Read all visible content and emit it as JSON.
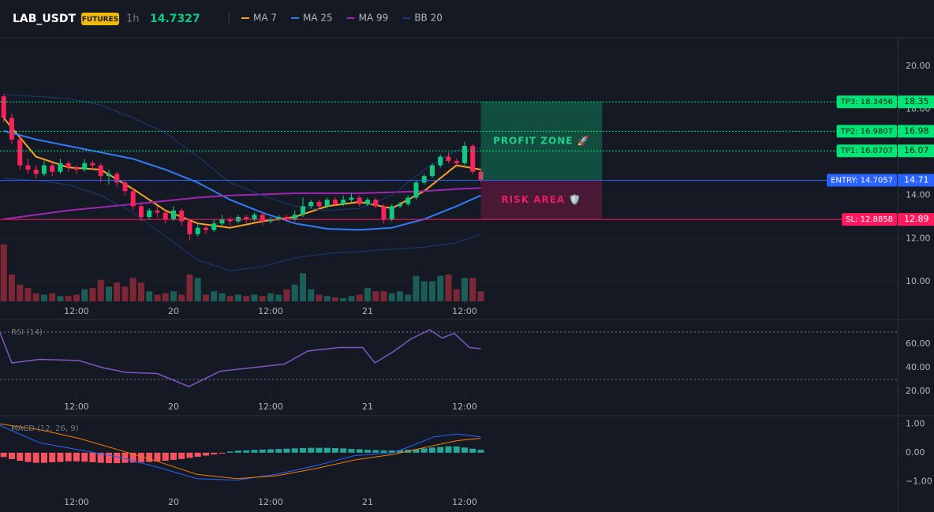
{
  "header": {
    "symbol": "LAB_USDT",
    "badge": "FUTURES",
    "interval": "1h",
    "price": "14.7327"
  },
  "chart_data": [
    {
      "type": "candlestick",
      "xlim": [
        2.54,
        113.56
      ],
      "xticks": [
        {
          "value": 12,
          "label": "12:00"
        },
        {
          "value": 24,
          "label": "20"
        },
        {
          "value": 36,
          "label": "12:00"
        },
        {
          "value": 48,
          "label": "21"
        },
        {
          "value": 60,
          "label": "12:00"
        }
      ],
      "ylim": [
        9.08,
        21.32
      ],
      "yticks": [
        {
          "value": 20,
          "label": "20.00"
        },
        {
          "value": 18,
          "label": "18.00"
        },
        {
          "value": 16,
          "label": "16.00"
        },
        {
          "value": 14,
          "label": "14.00"
        },
        {
          "value": 12,
          "label": "12.00"
        },
        {
          "value": 10,
          "label": "10.00"
        }
      ],
      "grid": true,
      "up_color": "#0ecb81",
      "down_color": "#f6245a",
      "volume_up_color": "#1b5e57",
      "volume_down_color": "#7c2736",
      "volume_ylim": [
        0,
        100
      ],
      "x": [
        3,
        4,
        5,
        6,
        7,
        8,
        9,
        10,
        11,
        12,
        13,
        14,
        15,
        16,
        17,
        18,
        19,
        20,
        21,
        22,
        23,
        24,
        25,
        26,
        27,
        28,
        29,
        30,
        31,
        32,
        33,
        34,
        35,
        36,
        37,
        38,
        39,
        40,
        41,
        42,
        43,
        44,
        45,
        46,
        47,
        48,
        49,
        50,
        51,
        52,
        53,
        54,
        55,
        56,
        57,
        58,
        59,
        60,
        61,
        62
      ],
      "candles": [
        [
          18.6,
          18.7,
          17.4,
          17.6
        ],
        [
          17.6,
          17.8,
          16.4,
          16.6
        ],
        [
          16.6,
          16.8,
          15.2,
          15.4
        ],
        [
          15.4,
          15.7,
          15.0,
          15.2
        ],
        [
          15.2,
          15.4,
          14.8,
          15.0
        ],
        [
          15.0,
          15.6,
          14.9,
          15.4
        ],
        [
          15.4,
          15.5,
          14.9,
          15.1
        ],
        [
          15.1,
          15.7,
          15.0,
          15.5
        ],
        [
          15.5,
          15.6,
          15.1,
          15.3
        ],
        [
          15.3,
          15.4,
          15.0,
          15.2
        ],
        [
          15.2,
          15.7,
          15.1,
          15.5
        ],
        [
          15.5,
          15.6,
          15.2,
          15.4
        ],
        [
          15.4,
          15.5,
          14.6,
          14.9
        ],
        [
          14.9,
          15.2,
          14.5,
          15.0
        ],
        [
          15.0,
          15.1,
          14.4,
          14.6
        ],
        [
          14.6,
          14.7,
          14.0,
          14.2
        ],
        [
          14.2,
          14.3,
          13.3,
          13.5
        ],
        [
          13.5,
          13.6,
          12.8,
          13.0
        ],
        [
          13.0,
          13.4,
          12.9,
          13.3
        ],
        [
          13.3,
          13.5,
          13.0,
          13.2
        ],
        [
          13.2,
          13.3,
          12.7,
          12.9
        ],
        [
          12.9,
          13.5,
          12.8,
          13.3
        ],
        [
          13.3,
          13.4,
          12.6,
          12.8
        ],
        [
          12.8,
          12.9,
          11.9,
          12.2
        ],
        [
          12.2,
          12.7,
          12.1,
          12.5
        ],
        [
          12.5,
          12.6,
          12.2,
          12.4
        ],
        [
          12.4,
          12.9,
          12.3,
          12.7
        ],
        [
          12.7,
          13.1,
          12.6,
          12.9
        ],
        [
          12.9,
          13.0,
          12.6,
          12.8
        ],
        [
          12.8,
          13.1,
          12.7,
          13.0
        ],
        [
          13.0,
          13.1,
          12.7,
          12.9
        ],
        [
          12.9,
          13.2,
          12.8,
          13.1
        ],
        [
          13.1,
          13.2,
          12.6,
          12.8
        ],
        [
          12.8,
          13.0,
          12.7,
          12.9
        ],
        [
          12.9,
          13.1,
          12.8,
          13.0
        ],
        [
          13.0,
          13.1,
          12.8,
          12.9
        ],
        [
          12.9,
          13.3,
          12.8,
          13.1
        ],
        [
          13.1,
          13.9,
          13.0,
          13.5
        ],
        [
          13.5,
          13.8,
          13.4,
          13.7
        ],
        [
          13.7,
          13.8,
          13.4,
          13.5
        ],
        [
          13.5,
          13.9,
          13.4,
          13.8
        ],
        [
          13.8,
          13.9,
          13.5,
          13.6
        ],
        [
          13.6,
          14.0,
          13.5,
          13.8
        ],
        [
          13.8,
          14.1,
          13.7,
          13.9
        ],
        [
          13.9,
          14.0,
          13.5,
          13.6
        ],
        [
          13.6,
          13.9,
          13.5,
          13.8
        ],
        [
          13.8,
          13.9,
          13.4,
          13.5
        ],
        [
          13.5,
          13.6,
          12.7,
          12.9
        ],
        [
          12.9,
          13.6,
          12.8,
          13.5
        ],
        [
          13.5,
          13.7,
          13.4,
          13.6
        ],
        [
          13.6,
          14.0,
          13.5,
          13.9
        ],
        [
          13.9,
          14.7,
          13.8,
          14.6
        ],
        [
          14.6,
          15.0,
          14.5,
          14.9
        ],
        [
          14.9,
          15.5,
          14.8,
          15.4
        ],
        [
          15.4,
          15.9,
          15.3,
          15.8
        ],
        [
          15.8,
          16.0,
          15.5,
          15.6
        ],
        [
          15.6,
          15.7,
          15.3,
          15.5
        ],
        [
          15.5,
          16.5,
          15.4,
          16.3
        ],
        [
          16.3,
          16.4,
          15.0,
          15.1
        ],
        [
          15.1,
          15.2,
          14.6,
          14.73
        ]
      ],
      "volume": [
        85,
        40,
        25,
        20,
        12,
        10,
        12,
        8,
        8,
        10,
        18,
        20,
        32,
        22,
        28,
        22,
        35,
        28,
        15,
        10,
        12,
        15,
        10,
        40,
        35,
        10,
        15,
        12,
        8,
        10,
        8,
        10,
        8,
        12,
        10,
        18,
        25,
        42,
        18,
        10,
        8,
        6,
        5,
        8,
        10,
        20,
        15,
        15,
        12,
        15,
        10,
        38,
        30,
        30,
        38,
        40,
        18,
        35,
        35,
        15
      ],
      "series": [
        {
          "name": "MA 7",
          "color": "#f7a325",
          "x": [
            3,
            7,
            11,
            15,
            19,
            23,
            27,
            31,
            35,
            39,
            43,
            47,
            51,
            55,
            59,
            62
          ],
          "values": [
            17.6,
            15.8,
            15.3,
            15.2,
            14.3,
            13.3,
            12.7,
            12.5,
            12.8,
            13.0,
            13.5,
            13.7,
            13.4,
            14.2,
            15.4,
            15.2
          ]
        },
        {
          "name": "MA 25",
          "color": "#2f7cf6",
          "x": [
            3,
            7,
            11,
            15,
            19,
            23,
            27,
            31,
            35,
            39,
            43,
            47,
            51,
            55,
            59,
            62
          ],
          "values": [
            17.0,
            16.6,
            16.3,
            16.0,
            15.7,
            15.2,
            14.6,
            13.8,
            13.2,
            12.7,
            12.45,
            12.4,
            12.5,
            12.9,
            13.5,
            14.0
          ]
        },
        {
          "name": "MA 99",
          "color": "#9c27b0",
          "x": [
            3,
            7,
            11,
            15,
            19,
            23,
            27,
            31,
            35,
            39,
            43,
            47,
            51,
            55,
            59,
            62
          ],
          "values": [
            12.9,
            13.1,
            13.3,
            13.45,
            13.6,
            13.75,
            13.9,
            14.0,
            14.05,
            14.1,
            14.1,
            14.1,
            14.15,
            14.2,
            14.3,
            14.35
          ]
        },
        {
          "name": "BB 20",
          "color": "#1c3a7a",
          "x": [
            3,
            7,
            11,
            15,
            19,
            23,
            27,
            31,
            35,
            39,
            43,
            47,
            51,
            55,
            59,
            62
          ],
          "values": [
            18.7,
            18.6,
            18.5,
            18.2,
            17.6,
            16.9,
            15.8,
            14.6,
            14.0,
            13.5,
            13.3,
            13.4,
            14.0,
            15.2,
            16.1,
            16.2
          ],
          "lower_values": [
            14.8,
            14.7,
            14.5,
            14.0,
            13.2,
            12.1,
            11.0,
            10.5,
            10.7,
            11.1,
            11.3,
            11.4,
            11.5,
            11.6,
            11.8,
            12.2
          ]
        }
      ],
      "zones": [
        {
          "label": "PROFIT ZONE 🚀",
          "range": [
            18.3456,
            14.7057
          ],
          "x": [
            62,
            77
          ],
          "color": "#0ecb81",
          "text_color": "#1fd08d"
        },
        {
          "label": "RISK AREA 🛡️",
          "range": [
            14.7057,
            12.8858
          ],
          "x": [
            62,
            77
          ],
          "color": "#c2185b",
          "text_color": "#e91e63"
        }
      ],
      "levels": [
        {
          "name": "TP3: 18.3456",
          "value": 18.3456,
          "value_label": "18.35",
          "color": "#00e676",
          "text_color": "#0b1a12",
          "dash": true
        },
        {
          "name": "TP2: 16.9807",
          "value": 16.9807,
          "value_label": "16.98",
          "color": "#00e676",
          "text_color": "#0b1a12",
          "dash": true
        },
        {
          "name": "TP1: 16.0707",
          "value": 16.0707,
          "value_label": "16.07",
          "color": "#00e676",
          "text_color": "#0b1a12",
          "dash": true
        },
        {
          "name": "ENTRY: 14.7057",
          "value": 14.7057,
          "value_label": "14.71",
          "color": "#2962ff",
          "text_color": "#ffffff",
          "dash": false
        },
        {
          "name": "SL: 12.8858",
          "value": 12.8858,
          "value_label": "12.89",
          "color": "#ff1a5e",
          "text_color": "#ffffff",
          "dash": false
        }
      ]
    },
    {
      "type": "line",
      "title": "RSI (14)",
      "xlim": [
        2.54,
        113.56
      ],
      "xticks": [
        {
          "value": 12,
          "label": "12:00"
        },
        {
          "value": 24,
          "label": "20"
        },
        {
          "value": 36,
          "label": "12:00"
        },
        {
          "value": 48,
          "label": "21"
        },
        {
          "value": 60,
          "label": "12:00"
        }
      ],
      "ylim": [
        16,
        78.7
      ],
      "yticks": [
        {
          "value": 60,
          "label": "60.00"
        },
        {
          "value": 40,
          "label": "40.00"
        },
        {
          "value": 20,
          "label": "20.00"
        }
      ],
      "hlines": [
        70,
        30
      ],
      "series": [
        {
          "color": "#7e57c2",
          "x": [
            2.5,
            4,
            7.4,
            12.3,
            15.2,
            18.1,
            22,
            25.9,
            29.8,
            33.8,
            37.7,
            40.6,
            44.5,
            47.4,
            48.9,
            51.3,
            53.3,
            55.7,
            57.2,
            58.7,
            60.6,
            62
          ],
          "values": [
            70,
            44,
            47,
            46,
            40,
            36,
            35,
            24,
            37,
            40,
            43,
            54,
            57,
            57,
            44,
            54,
            64,
            72,
            65,
            69,
            57,
            56
          ]
        }
      ]
    },
    {
      "type": "macd",
      "title": "MACD (12, 26, 9)",
      "xlim": [
        2.54,
        113.56
      ],
      "xticks": [
        {
          "value": 12,
          "label": "12:00"
        },
        {
          "value": 24,
          "label": "20"
        },
        {
          "value": 36,
          "label": "12:00"
        },
        {
          "value": 48,
          "label": "21"
        },
        {
          "value": 60,
          "label": "12:00"
        }
      ],
      "ylim": [
        -1.4,
        1.2
      ],
      "yticks": [
        {
          "value": 1,
          "label": "1.00"
        },
        {
          "value": 0,
          "label": "0.00"
        },
        {
          "value": -1,
          "label": "−1.00"
        }
      ],
      "histogram": {
        "up_color": "#26a69a",
        "down_color": "#f7525f",
        "x": [
          3,
          4,
          5,
          6,
          7,
          8,
          9,
          10,
          11,
          12,
          13,
          14,
          15,
          16,
          17,
          18,
          19,
          20,
          21,
          22,
          23,
          24,
          25,
          26,
          27,
          28,
          29,
          30,
          31,
          32,
          33,
          34,
          35,
          36,
          37,
          38,
          39,
          40,
          41,
          42,
          43,
          44,
          45,
          46,
          47,
          48,
          49,
          50,
          51,
          52,
          53,
          54,
          55,
          56,
          57,
          58,
          59,
          60,
          61,
          62
        ],
        "values": [
          -0.15,
          -0.22,
          -0.28,
          -0.32,
          -0.35,
          -0.35,
          -0.33,
          -0.32,
          -0.3,
          -0.3,
          -0.31,
          -0.33,
          -0.35,
          -0.36,
          -0.36,
          -0.35,
          -0.34,
          -0.33,
          -0.32,
          -0.3,
          -0.28,
          -0.25,
          -0.22,
          -0.18,
          -0.14,
          -0.1,
          -0.06,
          -0.03,
          0.04,
          0.07,
          0.08,
          0.1,
          0.11,
          0.12,
          0.13,
          0.14,
          0.15,
          0.16,
          0.17,
          0.17,
          0.17,
          0.16,
          0.15,
          0.13,
          0.12,
          0.1,
          0.09,
          0.08,
          0.08,
          0.09,
          0.1,
          0.12,
          0.15,
          0.18,
          0.2,
          0.22,
          0.22,
          0.18,
          0.14,
          0.1
        ]
      },
      "series": [
        {
          "color": "#2962ff",
          "x": [
            2.5,
            7.4,
            12.3,
            17.2,
            22,
            26.9,
            31.8,
            36.7,
            41.6,
            46.4,
            51.3,
            56.2,
            59.1,
            62
          ],
          "values": [
            0.95,
            0.35,
            0.1,
            -0.15,
            -0.5,
            -0.9,
            -0.95,
            -0.75,
            -0.45,
            -0.1,
            0,
            0.55,
            0.65,
            0.55
          ]
        },
        {
          "color": "#f57c00",
          "x": [
            2.5,
            7.4,
            12.3,
            17.2,
            22,
            26.9,
            31.8,
            36.7,
            41.6,
            46.4,
            51.3,
            56.2,
            59.1,
            62
          ],
          "values": [
            1.0,
            0.8,
            0.5,
            0.1,
            -0.3,
            -0.75,
            -0.9,
            -0.8,
            -0.55,
            -0.25,
            -0.05,
            0.25,
            0.42,
            0.5
          ]
        }
      ]
    }
  ]
}
